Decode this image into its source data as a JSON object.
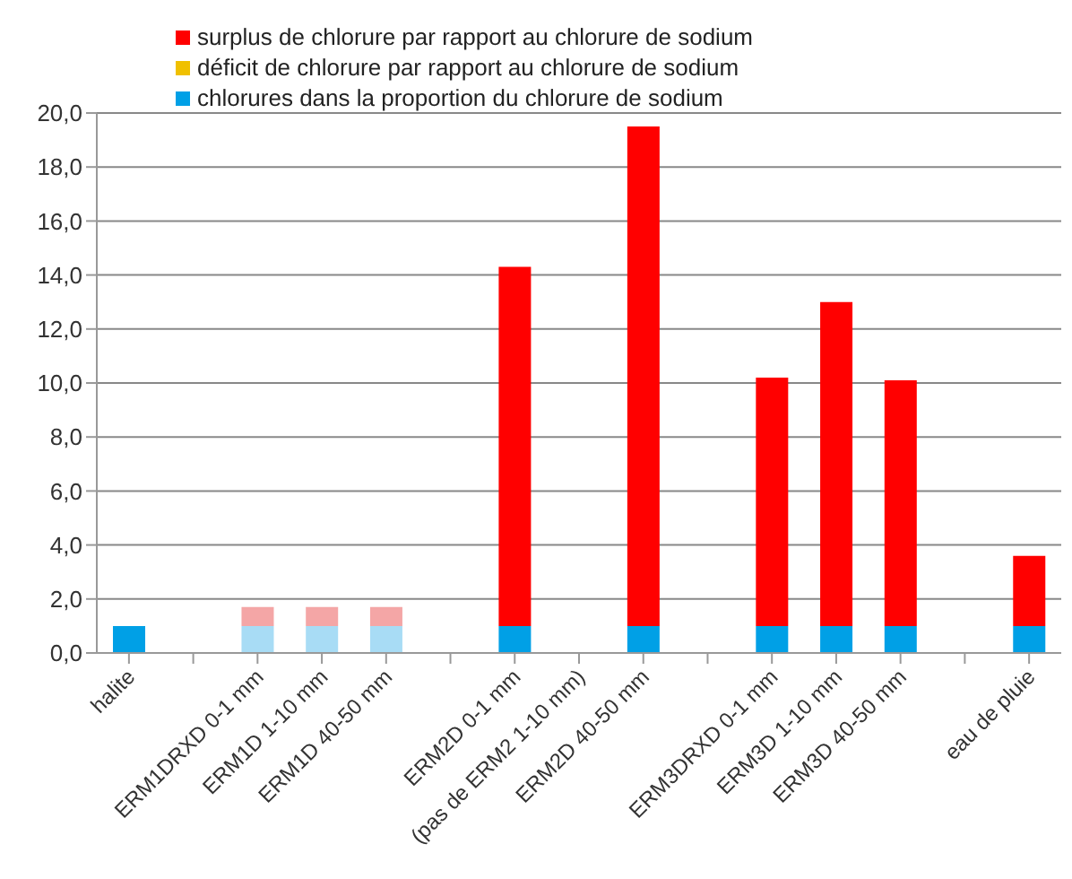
{
  "chart_data": {
    "type": "bar",
    "stacked": true,
    "categories": [
      "halite",
      null,
      "ERM1DRXD 0-1 mm",
      "ERM1D 1-10 mm",
      "ERM1D 40-50 mm",
      null,
      "ERM2D 0-1 mm",
      "(pas de ERM2 1-10 mm)",
      "ERM2D 40-50 mm",
      null,
      "ERM3DRXD 0-1 mm",
      "ERM3D 1-10 mm",
      "ERM3D 40-50 mm",
      null,
      "eau de pluie"
    ],
    "series": [
      {
        "name": "chlorures dans la proportion du chlorure de sodium",
        "color": "#00a0e6",
        "colors": [
          "#00a0e6",
          "#00a0e6",
          "#a8dcf5",
          "#a8dcf5",
          "#a8dcf5",
          "#00a0e6",
          "#00a0e6",
          "#00a0e6",
          "#00a0e6",
          "#00a0e6",
          "#00a0e6",
          "#00a0e6",
          "#00a0e6",
          "#00a0e6",
          "#00a0e6"
        ],
        "values": [
          1.0,
          null,
          1.0,
          1.0,
          1.0,
          null,
          1.0,
          null,
          1.0,
          null,
          1.0,
          1.0,
          1.0,
          null,
          1.0
        ]
      },
      {
        "name": "déficit de chlorure par rapport au chlorure de sodium",
        "color": "#f0c000",
        "values": [
          null,
          null,
          null,
          null,
          null,
          null,
          null,
          null,
          null,
          null,
          null,
          null,
          null,
          null,
          null
        ]
      },
      {
        "name": "surplus de chlorure par rapport au chlorure de sodium",
        "color": "#ff0000",
        "colors": [
          "#ff0000",
          "#ff0000",
          "#f4a6a6",
          "#f4a6a6",
          "#f4a6a6",
          "#ff0000",
          "#ff0000",
          "#ff0000",
          "#ff0000",
          "#ff0000",
          "#ff0000",
          "#ff0000",
          "#ff0000",
          "#ff0000",
          "#ff0000"
        ],
        "values": [
          null,
          null,
          0.7,
          0.7,
          0.7,
          null,
          13.3,
          null,
          18.5,
          null,
          9.2,
          12.0,
          9.1,
          null,
          2.6
        ]
      }
    ],
    "ylim": [
      0,
      20
    ],
    "yticks": [
      {
        "value": 0,
        "label": "0,0"
      },
      {
        "value": 2,
        "label": "2,0"
      },
      {
        "value": 4,
        "label": "4,0"
      },
      {
        "value": 6,
        "label": "6,0"
      },
      {
        "value": 8,
        "label": "8,0"
      },
      {
        "value": 10,
        "label": "10,0"
      },
      {
        "value": 12,
        "label": "12,0"
      },
      {
        "value": 14,
        "label": "14,0"
      },
      {
        "value": 16,
        "label": "16,0"
      },
      {
        "value": 18,
        "label": "18,0"
      },
      {
        "value": 20,
        "label": "20,0"
      }
    ],
    "grid": "y",
    "legend": "top"
  }
}
